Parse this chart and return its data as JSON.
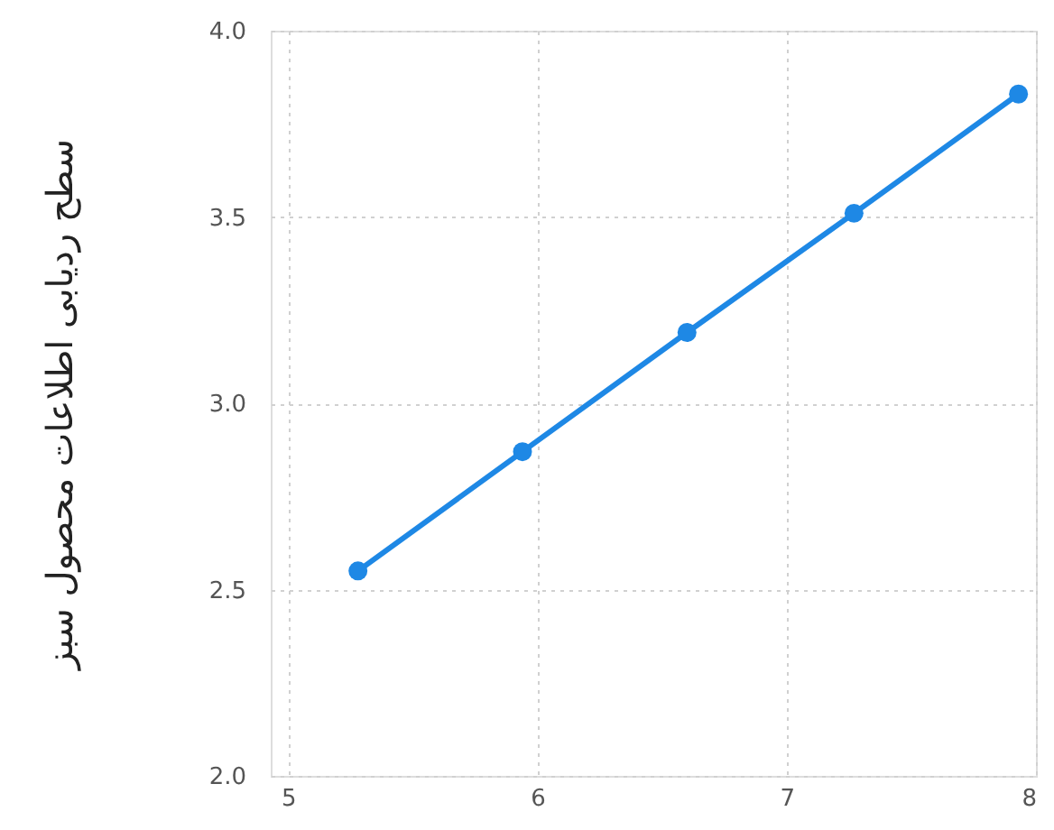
{
  "chart_data": {
    "type": "line",
    "ylabel": "سطح ردیابی اطلاعات محصول سبز",
    "x": [
      5.28,
      5.94,
      6.6,
      7.27,
      7.93
    ],
    "series": [
      {
        "color": "#1e88e5",
        "values": [
          2.55,
          2.87,
          3.19,
          3.51,
          3.83
        ]
      }
    ],
    "xlim": [
      4.93,
      8
    ],
    "xticks": [
      5,
      6,
      7,
      8
    ],
    "ylim": [
      2.0,
      4.0
    ],
    "yticks": [
      {
        "value": 2,
        "label": "2.0"
      },
      2.5,
      {
        "value": 3,
        "label": "3.0"
      },
      3.5,
      {
        "value": 4,
        "label": "4.0"
      }
    ],
    "grid": true,
    "marker": "circle",
    "line_style": "solid"
  }
}
